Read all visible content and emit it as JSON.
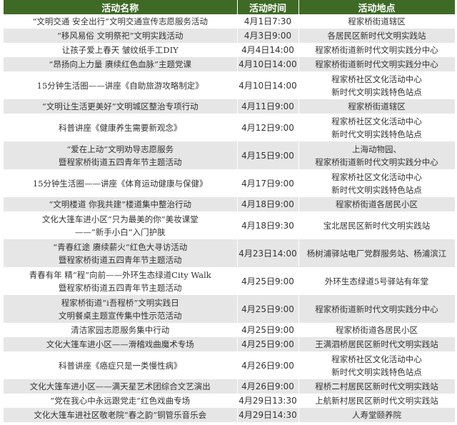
{
  "header": {
    "name": "活动名称",
    "time": "活动时间",
    "place": "活动地点"
  },
  "colors": {
    "header_bg": "#3e6a25",
    "stripe": "#e6e6e6"
  },
  "rows": [
    {
      "name": [
        "“文明交通 安全出行”文明交通宣传志愿服务活动"
      ],
      "time": "4月1日7:30",
      "place": [
        "程家桥街道辖区"
      ]
    },
    {
      "name": [
        "“移风易俗 文明祭祀”文明实践活动"
      ],
      "time": "4月3日9:00",
      "place": [
        "各居民区新时代文明实践站"
      ]
    },
    {
      "name": [
        "让孩子爱上春天 皱纹纸手工DIY"
      ],
      "time": "4月4日14:00",
      "place": [
        "程家桥街道新时代文明实践分中心"
      ]
    },
    {
      "name": [
        "“昂扬向上力量 赓续红色血脉”主题党课"
      ],
      "time": "4月10日14:00",
      "place": [
        "程家桥街道新时代文明实践分中心"
      ]
    },
    {
      "name": [
        "15分钟生活圈——讲座《自助旅游攻略制定》"
      ],
      "time": "4月10日14:00",
      "place": [
        "程家桥社区文化活动中心",
        "新时代文明实践特色站点"
      ]
    },
    {
      "name": [
        "“文明让生活更美好”文明城区整治专项行动"
      ],
      "time": "4月11日9:00",
      "place": [
        "程家桥街道辖区"
      ]
    },
    {
      "name": [
        "科普讲座《健康养生需要新观念》"
      ],
      "time": "4月12日9:00",
      "place": [
        "程家桥社区文化活动中心",
        "新时代文明实践特色站点"
      ]
    },
    {
      "name": [
        "“爱在上动”文明劝导志愿服务",
        "暨程家桥街道五四青年节主题活动"
      ],
      "time": "4月15日9:00",
      "place": [
        "上海动物园、",
        "程家桥街道新时代文明实践分中心"
      ]
    },
    {
      "name": [
        "15分钟生活圈——讲座《体育运动健康与保健》"
      ],
      "time": "4月17日9:00",
      "place": [
        "程家桥社区文化活动中心",
        "新时代文明实践特色站点"
      ]
    },
    {
      "name": [
        "“文明楼道 你我共建”楼道集中整治行动"
      ],
      "time": "4月18日9:00",
      "place": [
        "程家桥街道各居民小区"
      ]
    },
    {
      "name": [
        "文化大篷车进小区“只为最美的你”美妆课堂",
        "——“新手小白”入门护肤"
      ],
      "time": "4月18日9:30",
      "place": [
        "宝北居民区新时代文明实践站"
      ]
    },
    {
      "name": [
        "“青春红途 赓续薪火”红色大寻访活动",
        "暨程家桥街道五四青年节主题活动"
      ],
      "time": "4月23日14:00",
      "place": [
        "杨树浦驿站电厂党群服务站、杨浦滨江"
      ]
    },
    {
      "name": [
        "青春有年 精“程”向前——外环生态绿道City Walk",
        "暨程家桥街道五四青年节主题活动"
      ],
      "time": "4月25日9:00",
      "place": [
        "外环生态绿道5号驿站有年堂"
      ]
    },
    {
      "name": [
        "程家桥街道“i吾程桥”文明实践日",
        "文明餐桌主题宣传集中性示范活动"
      ],
      "time": "4月25日9:00",
      "place": [
        "程家桥街道新时代文明实践分中心"
      ]
    },
    {
      "name": [
        "清洁家园志愿服务集中行动"
      ],
      "time": "4月25日9:00",
      "place": [
        "程家桥街道各居民小区"
      ]
    },
    {
      "name": [
        "文化大篷车进小区——滑稽戏曲魔术专场"
      ],
      "time": "4月25日9:00",
      "place": [
        "王满泗桥居民区新时代文明实践站"
      ]
    },
    {
      "name": [
        "科普讲座《癌症只是一类慢性病》"
      ],
      "time": "4月26日9:00",
      "place": [
        "程家桥社区文化活动中心",
        "新时代文明实践特色站点"
      ]
    },
    {
      "name": [
        "文化大篷车进小区——满天星艺术团综合文艺演出"
      ],
      "time": "4月26日9:00",
      "place": [
        "程桥二村居民区新时代文明实践站"
      ]
    },
    {
      "name": [
        "“党在我心中永远跟党走”红色戏曲专场"
      ],
      "time": "4月29日13:30",
      "place": [
        "上航新村居民区新时代文明实践站"
      ]
    },
    {
      "name": [
        "文化大篷车进社区敬老院“春之韵”铜管乐音乐会"
      ],
      "time": "4月29日14:30",
      "place": [
        "人寿堂颐养院"
      ]
    }
  ]
}
